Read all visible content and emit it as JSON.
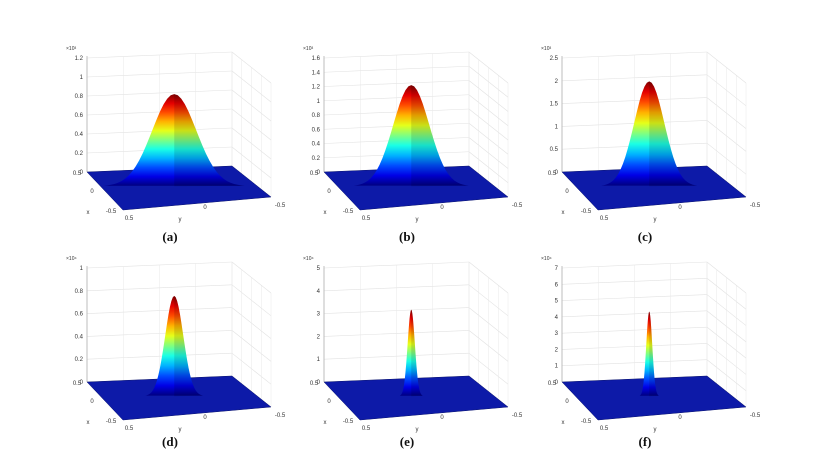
{
  "chart_data": [
    {
      "type": "surface",
      "panel_label": "(a)",
      "exponent_label": "×10³",
      "z_ticks": [
        "0",
        "0.2",
        "0.4",
        "0.6",
        "0.8",
        "1",
        "1.2"
      ],
      "zlim": [
        0,
        1.2
      ],
      "peak": 0.97,
      "width": 0.11,
      "x_ticks": [
        "0.5",
        "0",
        "-0.5"
      ],
      "y_ticks": [
        "0.5",
        "0",
        "-0.5"
      ],
      "xlabel": "x",
      "ylabel": "y",
      "colormap": "jet",
      "grid": true
    },
    {
      "type": "surface",
      "panel_label": "(b)",
      "exponent_label": "×10³",
      "z_ticks": [
        "0",
        "0.2",
        "0.4",
        "0.6",
        "0.8",
        "1",
        "1.2",
        "1.4",
        "1.6"
      ],
      "zlim": [
        0,
        1.6
      ],
      "peak": 1.42,
      "width": 0.09,
      "x_ticks": [
        "0.5",
        "0",
        "-0.5"
      ],
      "y_ticks": [
        "0.5",
        "0",
        "-0.5"
      ],
      "xlabel": "x",
      "ylabel": "y",
      "colormap": "jet",
      "grid": true
    },
    {
      "type": "surface",
      "panel_label": "(c)",
      "exponent_label": "×10³",
      "z_ticks": [
        "0",
        "0.5",
        "1",
        "1.5",
        "2",
        "2.5"
      ],
      "zlim": [
        0,
        2.5
      ],
      "peak": 2.3,
      "width": 0.075,
      "x_ticks": [
        "0.5",
        "0",
        "-0.5"
      ],
      "y_ticks": [
        "0.5",
        "0",
        "-0.5"
      ],
      "xlabel": "x",
      "ylabel": "y",
      "colormap": "jet",
      "grid": true
    },
    {
      "type": "surface",
      "panel_label": "(d)",
      "exponent_label": "×10⁴",
      "z_ticks": [
        "0",
        "0.2",
        "0.4",
        "0.6",
        "0.8",
        "1"
      ],
      "zlim": [
        0,
        1
      ],
      "peak": 0.88,
      "width": 0.045,
      "x_ticks": [
        "0.5",
        "0",
        "-0.5"
      ],
      "y_ticks": [
        "0.5",
        "0",
        "-0.5"
      ],
      "xlabel": "x",
      "ylabel": "y",
      "colormap": "jet",
      "grid": true
    },
    {
      "type": "surface",
      "panel_label": "(e)",
      "exponent_label": "×10⁴",
      "z_ticks": [
        "0",
        "1",
        "2",
        "3",
        "4",
        "5"
      ],
      "zlim": [
        0,
        5
      ],
      "peak": 3.8,
      "width": 0.018,
      "x_ticks": [
        "0.5",
        "0",
        "-0.5"
      ],
      "y_ticks": [
        "0.5",
        "0",
        "-0.5"
      ],
      "xlabel": "x",
      "ylabel": "y",
      "colormap": "jet",
      "grid": true
    },
    {
      "type": "surface",
      "panel_label": "(f)",
      "exponent_label": "×10⁴",
      "z_ticks": [
        "0",
        "1",
        "2",
        "3",
        "4",
        "5",
        "6",
        "7"
      ],
      "zlim": [
        0,
        7
      ],
      "peak": 5.2,
      "width": 0.012,
      "x_ticks": [
        "0.5",
        "0",
        "-0.5"
      ],
      "y_ticks": [
        "0.5",
        "0",
        "-0.5"
      ],
      "xlabel": "x",
      "ylabel": "y",
      "colormap": "jet",
      "grid": true
    }
  ]
}
